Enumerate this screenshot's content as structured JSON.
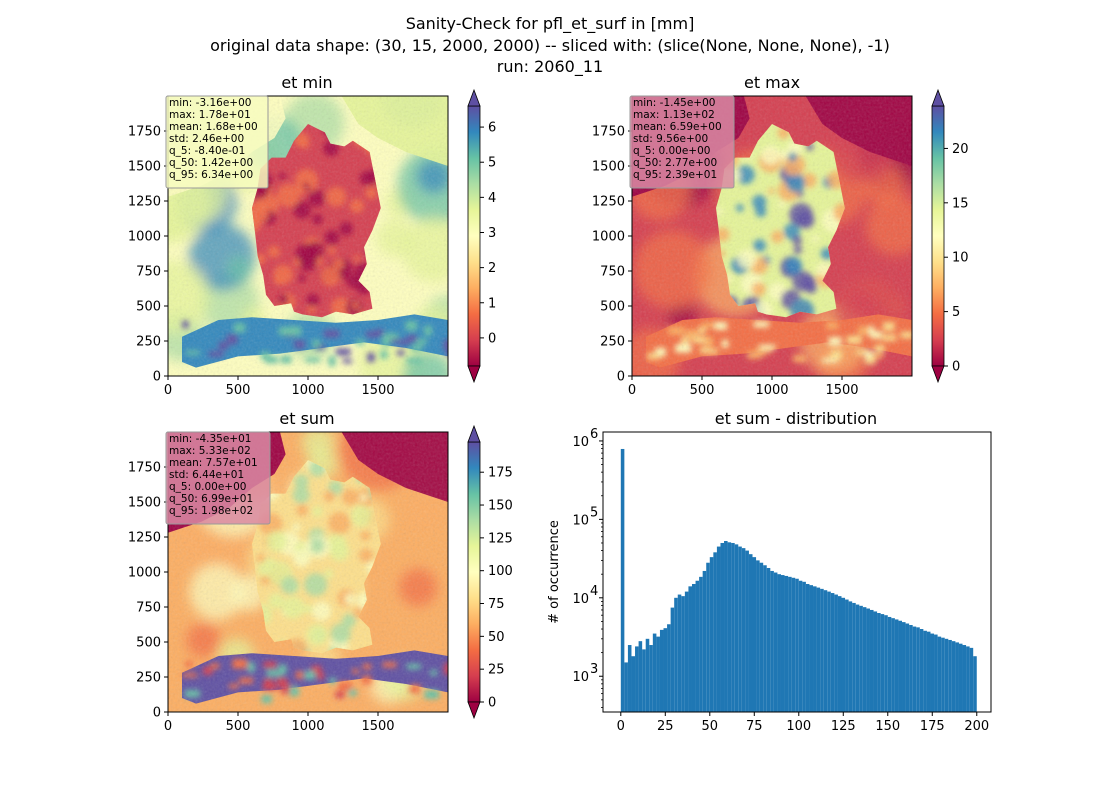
{
  "figure": {
    "title_lines": [
      "Sanity-Check for pfl_et_surf in [mm]",
      "original data shape: (30, 15, 2000, 2000) -- sliced with: (slice(None, None, None), -1)",
      "run: 2060_11"
    ]
  },
  "colormap": {
    "name": "Spectral",
    "stops": [
      "#9e0142",
      "#d53e4f",
      "#f46d43",
      "#fdae61",
      "#fee08b",
      "#ffffbf",
      "#e6f598",
      "#abdda4",
      "#66c2a5",
      "#3288bd",
      "#5e4fa2"
    ]
  },
  "chart_data": [
    {
      "type": "heatmap",
      "title": "et min",
      "xlim": [
        0,
        2000
      ],
      "ylim": [
        0,
        2000
      ],
      "x_ticks": [
        0,
        500,
        1000,
        1500
      ],
      "y_ticks": [
        0,
        250,
        500,
        750,
        1000,
        1250,
        1500,
        1750
      ],
      "color_range": [
        -0.8,
        6.6
      ],
      "colorbar_ticks": [
        0,
        1,
        2,
        3,
        4,
        5,
        6
      ],
      "stats": [
        "min: -3.16e+00",
        "max: 1.78e+01",
        "mean: 1.68e+00",
        "std: 2.46e+00",
        "q_5: -8.40e-01",
        "q_50: 1.42e+00",
        "q_95: 6.34e+00"
      ],
      "stats_box_color": "#f7fbbf"
    },
    {
      "type": "heatmap",
      "title": "et max",
      "xlim": [
        0,
        2000
      ],
      "ylim": [
        0,
        2000
      ],
      "x_ticks": [
        0,
        500,
        1000,
        1500
      ],
      "y_ticks": [
        0,
        250,
        500,
        750,
        1000,
        1250,
        1500,
        1750
      ],
      "color_range": [
        0,
        23.9
      ],
      "colorbar_ticks": [
        0,
        5,
        10,
        15,
        20
      ],
      "stats": [
        "min: -1.45e+00",
        "max: 1.13e+02",
        "mean: 6.59e+00",
        "std: 9.56e+00",
        "q_5: 0.00e+00",
        "q_50: 2.77e+00",
        "q_95: 2.39e+01"
      ],
      "stats_box_color": "#d98aa3"
    },
    {
      "type": "heatmap",
      "title": "et sum",
      "xlim": [
        0,
        2000
      ],
      "ylim": [
        0,
        2000
      ],
      "x_ticks": [
        0,
        500,
        1000,
        1500
      ],
      "y_ticks": [
        0,
        250,
        500,
        750,
        1000,
        1250,
        1500,
        1750
      ],
      "color_range": [
        0,
        198
      ],
      "colorbar_ticks": [
        0,
        25,
        50,
        75,
        100,
        125,
        150,
        175
      ],
      "stats": [
        "min: -4.35e+01",
        "max: 5.33e+02",
        "mean: 7.57e+01",
        "std: 6.44e+01",
        "q_5: 0.00e+00",
        "q_50: 6.99e+01",
        "q_95: 1.98e+02"
      ],
      "stats_box_color": "#d98aa3"
    },
    {
      "type": "bar",
      "title": "et sum - distribution",
      "xlabel": "",
      "ylabel": "# of occurrence",
      "yscale": "log",
      "xlim": [
        -10,
        208
      ],
      "ylim": [
        350,
        1300000
      ],
      "x_ticks": [
        0,
        25,
        50,
        75,
        100,
        125,
        150,
        175,
        200
      ],
      "y_ticks": [
        1000,
        10000,
        100000,
        1000000
      ],
      "y_tick_labels": [
        "10",
        "10",
        "10",
        "10"
      ],
      "y_tick_exponents": [
        "3",
        "4",
        "5",
        "6"
      ],
      "bar_color": "#1f77b4",
      "x": [
        0,
        2,
        4,
        6,
        8,
        10,
        12,
        14,
        16,
        18,
        20,
        22,
        24,
        26,
        28,
        30,
        32,
        34,
        36,
        38,
        40,
        42,
        44,
        46,
        48,
        50,
        52,
        54,
        56,
        58,
        60,
        62,
        64,
        66,
        68,
        70,
        72,
        74,
        76,
        78,
        80,
        82,
        84,
        86,
        88,
        90,
        92,
        94,
        96,
        98,
        100,
        102,
        104,
        106,
        108,
        110,
        112,
        114,
        116,
        118,
        120,
        122,
        124,
        126,
        128,
        130,
        132,
        134,
        136,
        138,
        140,
        142,
        144,
        146,
        148,
        150,
        152,
        154,
        156,
        158,
        160,
        162,
        164,
        166,
        168,
        170,
        172,
        174,
        176,
        178,
        180,
        182,
        184,
        186,
        188,
        190,
        192,
        194,
        196,
        198
      ],
      "values": [
        790000,
        1500,
        2500,
        1800,
        2400,
        2800,
        2200,
        3000,
        2500,
        3500,
        3200,
        3900,
        4100,
        4600,
        7500,
        10000,
        11000,
        10500,
        12000,
        14000,
        15000,
        16500,
        18500,
        22000,
        28000,
        33000,
        38000,
        45000,
        50000,
        53000,
        51000,
        50000,
        48000,
        45000,
        43000,
        40000,
        36000,
        33000,
        30000,
        28000,
        26000,
        24000,
        22000,
        21000,
        20000,
        19500,
        19000,
        18500,
        18000,
        17500,
        16500,
        16000,
        15000,
        14500,
        14000,
        13500,
        13000,
        12500,
        12000,
        11500,
        11000,
        10500,
        10000,
        9500,
        9000,
        8600,
        8200,
        7900,
        7600,
        7300,
        7000,
        6700,
        6400,
        6200,
        6000,
        5700,
        5500,
        5300,
        5100,
        4900,
        4700,
        4500,
        4300,
        4200,
        4000,
        3800,
        3700,
        3500,
        3400,
        3200,
        3100,
        3000,
        2900,
        2800,
        2700,
        2600,
        2500,
        2400,
        2300,
        1800
      ]
    }
  ]
}
